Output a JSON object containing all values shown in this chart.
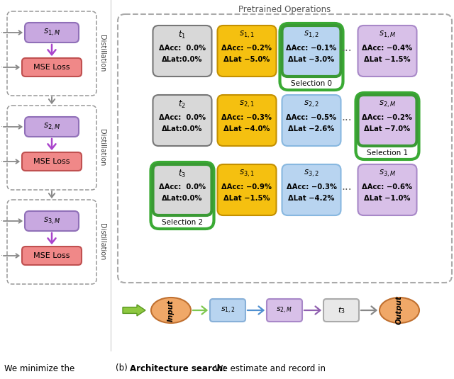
{
  "title": "Pretrained Operations",
  "bg_color": "#ffffff",
  "left_panel_blocks": [
    {
      "s_label": "s_{1,M}",
      "dist": "Distillation"
    },
    {
      "s_label": "s_{2,M}",
      "dist": "Distillation"
    },
    {
      "s_label": "s_{3,M}",
      "dist": "Distillation"
    }
  ],
  "grid_rows": [
    [
      {
        "label": "t_1",
        "acc": "ΔAcc:  0.0%",
        "lat": "ΔLat:0.0%",
        "bg": "#d8d8d8",
        "border": "#777777",
        "border_lw": 1.5,
        "sel": false,
        "sel_label": ""
      },
      {
        "label": "s_{1,1}",
        "acc": "ΔAcc: −0.2%",
        "lat": "ΔLat −5.0%",
        "bg": "#f5c010",
        "border": "#c49000",
        "border_lw": 1.5,
        "sel": false,
        "sel_label": ""
      },
      {
        "label": "s_{1,2}",
        "acc": "ΔAcc: −0.1%",
        "lat": "ΔLat −3.0%",
        "bg": "#b8d4f0",
        "border": "#3a9a34",
        "border_lw": 3.0,
        "sel": true,
        "sel_label": "Selection 0"
      },
      {
        "label": "s_{1,M}",
        "acc": "ΔAcc: −0.4%",
        "lat": "ΔLat −1.5%",
        "bg": "#d8c0e8",
        "border": "#a888c8",
        "border_lw": 1.5,
        "sel": false,
        "sel_label": ""
      }
    ],
    [
      {
        "label": "t_2",
        "acc": "ΔAcc:  0.0%",
        "lat": "ΔLat:0.0%",
        "bg": "#d8d8d8",
        "border": "#777777",
        "border_lw": 1.5,
        "sel": false,
        "sel_label": ""
      },
      {
        "label": "s_{2,1}",
        "acc": "ΔAcc: −0.3%",
        "lat": "ΔLat −4.0%",
        "bg": "#f5c010",
        "border": "#c49000",
        "border_lw": 1.5,
        "sel": false,
        "sel_label": ""
      },
      {
        "label": "s_{2,2}",
        "acc": "ΔAcc: −0.5%",
        "lat": "ΔLat −2.6%",
        "bg": "#b8d4f0",
        "border": "#88b8e0",
        "border_lw": 1.5,
        "sel": false,
        "sel_label": ""
      },
      {
        "label": "s_{2,M}",
        "acc": "ΔAcc: −0.2%",
        "lat": "ΔLat −7.0%",
        "bg": "#d8c0e8",
        "border": "#3a9a34",
        "border_lw": 3.0,
        "sel": true,
        "sel_label": "Selection 1"
      }
    ],
    [
      {
        "label": "t_3",
        "acc": "ΔAcc:  0.0%",
        "lat": "ΔLat:0.0%",
        "bg": "#d8d8d8",
        "border": "#3a9a34",
        "border_lw": 3.0,
        "sel": true,
        "sel_label": "Selection 2"
      },
      {
        "label": "s_{3,1}",
        "acc": "ΔAcc: −0.9%",
        "lat": "ΔLat −1.5%",
        "bg": "#f5c010",
        "border": "#c49000",
        "border_lw": 1.5,
        "sel": false,
        "sel_label": ""
      },
      {
        "label": "s_{3,2}",
        "acc": "ΔAcc: −0.3%",
        "lat": "ΔLat −4.2%",
        "bg": "#b8d4f0",
        "border": "#88b8e0",
        "border_lw": 1.5,
        "sel": false,
        "sel_label": ""
      },
      {
        "label": "s_{3,M}",
        "acc": "ΔAcc: −0.6%",
        "lat": "ΔLat −1.0%",
        "bg": "#d8c0e8",
        "border": "#a888c8",
        "border_lw": 1.5,
        "sel": false,
        "sel_label": ""
      }
    ]
  ],
  "flow_nodes": [
    {
      "label": "Input",
      "shape": "ellipse",
      "bg": "#f0a868",
      "border": "#c07030"
    },
    {
      "label": "s_{1,2}",
      "shape": "rect",
      "bg": "#b8d4f0",
      "border": "#88b0d8"
    },
    {
      "label": "s_{2,M}",
      "shape": "rect",
      "bg": "#d8c0e8",
      "border": "#a888c8"
    },
    {
      "label": "t_3",
      "shape": "rect",
      "bg": "#e8e8e8",
      "border": "#aaaaaa"
    },
    {
      "label": "Output",
      "shape": "ellipse",
      "bg": "#f0a868",
      "border": "#c07030"
    }
  ],
  "flow_arrow_colors": [
    "#7ec850",
    "#5090d0",
    "#9060b0",
    "#888888"
  ]
}
